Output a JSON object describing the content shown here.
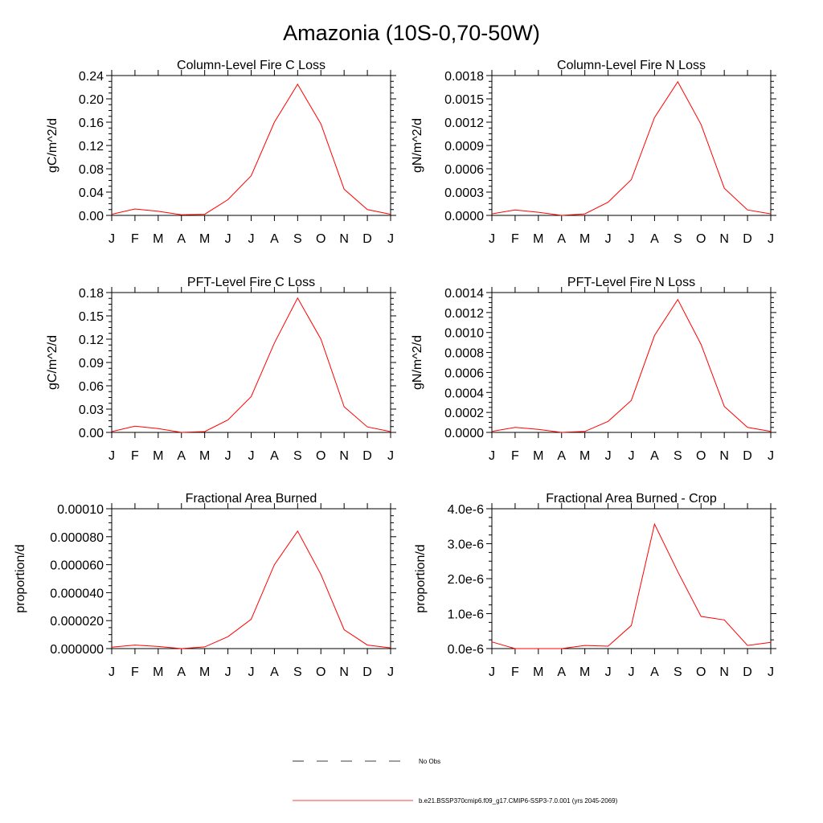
{
  "figure": {
    "title": "Amazonia (10S-0,70-50W)"
  },
  "legend": {
    "items": [
      {
        "label": "No Obs",
        "color": "#000000",
        "dashed": true
      },
      {
        "label": "b.e21.BSSP370cmip6.f09_g17.CMIP6-SSP3-7.0.001 (yrs 2045-2069)",
        "color": "#ff0000",
        "dashed": false
      }
    ]
  },
  "chart_data": [
    {
      "type": "line",
      "title": "Column-Level Fire C Loss",
      "ylabel": "gC/m^2/d",
      "xlabel": "",
      "categories": [
        "J",
        "F",
        "M",
        "A",
        "M",
        "J",
        "J",
        "A",
        "S",
        "O",
        "N",
        "D",
        "J"
      ],
      "ylim": [
        0,
        0.24
      ],
      "yticks": [
        "0.00",
        "0.04",
        "0.08",
        "0.12",
        "0.16",
        "0.20",
        "0.24"
      ],
      "series": [
        {
          "color": "#ff0000",
          "values": [
            0.002,
            0.011,
            0.007,
            0.001,
            0.002,
            0.027,
            0.068,
            0.16,
            0.225,
            0.157,
            0.045,
            0.01,
            0.002
          ]
        }
      ]
    },
    {
      "type": "line",
      "title": "Column-Level Fire N Loss",
      "ylabel": "gN/m^2/d",
      "xlabel": "",
      "categories": [
        "J",
        "F",
        "M",
        "A",
        "M",
        "J",
        "J",
        "A",
        "S",
        "O",
        "N",
        "D",
        "J"
      ],
      "ylim": [
        0,
        0.0018
      ],
      "yticks": [
        "0.0000",
        "0.0003",
        "0.0006",
        "0.0009",
        "0.0012",
        "0.0015",
        "0.0018"
      ],
      "series": [
        {
          "color": "#ff0000",
          "values": [
            2e-05,
            7e-05,
            4e-05,
            0.0,
            2e-05,
            0.00017,
            0.00046,
            0.00126,
            0.00172,
            0.00117,
            0.00035,
            7e-05,
            2e-05
          ]
        }
      ]
    },
    {
      "type": "line",
      "title": "PFT-Level Fire C Loss",
      "ylabel": "gC/m^2/d",
      "xlabel": "",
      "categories": [
        "J",
        "F",
        "M",
        "A",
        "M",
        "J",
        "J",
        "A",
        "S",
        "O",
        "N",
        "D",
        "J"
      ],
      "ylim": [
        0,
        0.18
      ],
      "yticks": [
        "0.00",
        "0.03",
        "0.06",
        "0.09",
        "0.12",
        "0.15",
        "0.18"
      ],
      "series": [
        {
          "color": "#ff0000",
          "values": [
            0.001,
            0.008,
            0.005,
            0.0,
            0.001,
            0.016,
            0.046,
            0.115,
            0.173,
            0.12,
            0.033,
            0.007,
            0.001
          ]
        }
      ]
    },
    {
      "type": "line",
      "title": "PFT-Level Fire N Loss",
      "ylabel": "gN/m^2/d",
      "xlabel": "",
      "categories": [
        "J",
        "F",
        "M",
        "A",
        "M",
        "J",
        "J",
        "A",
        "S",
        "O",
        "N",
        "D",
        "J"
      ],
      "ylim": [
        0,
        0.0014
      ],
      "yticks": [
        "0.0000",
        "0.0002",
        "0.0004",
        "0.0006",
        "0.0008",
        "0.0010",
        "0.0012",
        "0.0014"
      ],
      "series": [
        {
          "color": "#ff0000",
          "values": [
            1e-05,
            5e-05,
            3e-05,
            0.0,
            1e-05,
            0.00011,
            0.00032,
            0.00097,
            0.00133,
            0.00088,
            0.00026,
            5e-05,
            1e-05
          ]
        }
      ]
    },
    {
      "type": "line",
      "title": "Fractional Area Burned",
      "ylabel": "proportion/d",
      "xlabel": "",
      "categories": [
        "J",
        "F",
        "M",
        "A",
        "M",
        "J",
        "J",
        "A",
        "S",
        "O",
        "N",
        "D",
        "J"
      ],
      "ylim": [
        0,
        0.0001
      ],
      "yticks": [
        "0.000000",
        "0.000020",
        "0.000040",
        "0.000060",
        "0.000080",
        "0.00010"
      ],
      "series": [
        {
          "color": "#ff0000",
          "values": [
            1e-06,
            2.5e-06,
            1.5e-06,
            0.0,
            1.2e-06,
            8.5e-06,
            2.1e-05,
            6e-05,
            8.4e-05,
            5.3e-05,
            1.35e-05,
            2.5e-06,
            5e-07
          ]
        }
      ]
    },
    {
      "type": "line",
      "title": "Fractional Area Burned - Crop",
      "ylabel": "proportion/d",
      "xlabel": "",
      "categories": [
        "J",
        "F",
        "M",
        "A",
        "M",
        "J",
        "J",
        "A",
        "S",
        "O",
        "N",
        "D",
        "J"
      ],
      "ylim": [
        0,
        4e-06
      ],
      "yticks": [
        "0.0e-6",
        "1.0e-6",
        "2.0e-6",
        "3.0e-6",
        "4.0e-6"
      ],
      "series": [
        {
          "color": "#ff0000",
          "values": [
            1.9e-07,
            0.0,
            0.0,
            0.0,
            9e-08,
            7e-08,
            6.6e-07,
            3.56e-06,
            2.2e-06,
            9.2e-07,
            8.2e-07,
            9e-08,
            1.8e-07
          ]
        }
      ]
    }
  ]
}
